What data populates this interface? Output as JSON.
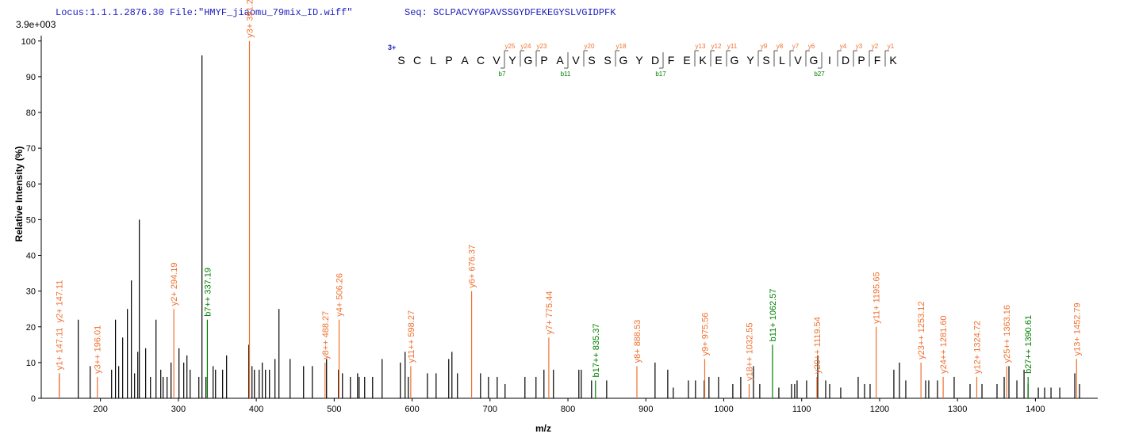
{
  "chart_data": {
    "type": "stem",
    "header": {
      "locus": "Locus:1.1.1.2876.30 File:\"HMYF_jiaomu_79mix_ID.wiff\"",
      "seq": "Seq: SCLPACVYGPAVSSGYDFEKEGYSLVGIDPFK"
    },
    "scale_label": "3.9e+003",
    "y_label": "Relative   Intensity (%)",
    "x_label": "m/z",
    "xlim": [
      124,
      1480
    ],
    "ylim": [
      0,
      101.5
    ],
    "xticks": [
      200,
      300,
      400,
      500,
      600,
      700,
      800,
      900,
      1000,
      1100,
      1200,
      1300,
      1400
    ],
    "yticks": [
      0,
      10,
      20,
      30,
      40,
      50,
      60,
      70,
      80,
      90,
      100
    ],
    "grid": false,
    "series": [
      {
        "color": "#000000",
        "x": [
          171.5,
          186.8,
          214.3,
          219.3,
          223.4,
          228.5,
          234.6,
          239.7,
          243.8,
          247.9,
          249.9,
          258,
          264.2,
          271.3,
          277.4,
          280.4,
          285.5,
          290.6,
          300.8,
          306.9,
          311,
          315.1,
          326.3,
          330.3,
          335.4,
          344.6,
          347.7,
          356.8,
          361.9,
          390.4,
          394.5,
          397.6,
          403.7,
          407.7,
          411.8,
          416.9,
          424,
          429.1,
          443.4,
          460.7,
          471.9,
          490.2,
          505.5,
          510.6,
          520.8,
          530,
          532,
          539.1,
          549.3,
          561.5,
          584.9,
          591,
          595.1,
          619.6,
          630.8,
          647,
          651.1,
          658.2,
          687.8,
          698,
          709.2,
          719.3,
          744.8,
          759,
          769.2,
          781.4,
          814,
          817.1,
          830.3,
          849.7,
          911.8,
          928.1,
          935.2,
          954.6,
          963.7,
          974.9,
          981,
          993.3,
          1011.6,
          1021.8,
          1038.1,
          1046.2,
          1070.7,
          1087,
          1091,
          1094.1,
          1106.3,
          1120.6,
          1130.8,
          1135.9,
          1150.1,
          1172.5,
          1180.7,
          1187.8,
          1218.3,
          1225.5,
          1233.6,
          1259.1,
          1263.1,
          1274.3,
          1295.7,
          1316.1,
          1331.4,
          1350.7,
          1359.9,
          1366,
          1376.2,
          1385.4,
          1390.5,
          1403.7,
          1411.8,
          1420,
          1431.2,
          1450.5,
          1456.6
        ],
        "values": [
          22,
          9,
          8,
          22,
          9,
          17,
          25,
          33,
          7,
          13,
          50,
          14,
          6,
          22,
          8,
          6,
          6,
          10,
          14,
          10,
          12,
          8,
          6,
          96,
          6,
          9,
          8,
          8,
          12,
          15,
          9,
          8,
          8,
          10,
          8,
          8,
          11,
          25,
          11,
          9,
          9,
          11,
          8,
          7,
          6,
          7,
          6,
          6,
          6,
          11,
          10,
          13,
          6,
          7,
          7,
          11,
          13,
          7,
          7,
          6,
          6,
          4,
          6,
          6,
          8,
          8,
          8,
          8,
          5,
          5,
          10,
          8,
          3,
          5,
          5,
          5,
          6,
          6,
          4,
          6,
          9,
          4,
          3,
          4,
          4,
          5,
          5,
          12,
          5,
          4,
          3,
          6,
          4,
          4,
          8,
          10,
          5,
          5,
          5,
          5,
          6,
          4,
          4,
          4,
          6,
          9,
          5,
          8,
          4,
          3,
          3,
          3,
          3,
          7,
          4
        ]
      },
      {
        "color": "#f07030",
        "x": [
          147.11,
          147.11,
          196.01,
          294.19,
          391.24,
          488.27,
          506.26,
          598.27,
          676.37,
          775.44,
          888.53,
          975.56,
          1032.55,
          1119.54,
          1195.65,
          1253.12,
          1281.6,
          1324.72,
          1363.16,
          1452.79
        ],
        "values": [
          7,
          7,
          6,
          25,
          100,
          10,
          22,
          9,
          30,
          17,
          9,
          11,
          4,
          6,
          20,
          10,
          6,
          6,
          9,
          11
        ],
        "labels": [
          "y1+ 147.11",
          "y2+ 147.11",
          "y3++ 196.01",
          "y2+ 294.19",
          "y3+ 391.24",
          "y8++ 488.27",
          "y4+ 506.26",
          "y11++ 598.27",
          "y6+ 676.37",
          "y7+ 775.44",
          "y8+ 888.53",
          "y9+ 975.56",
          "y18++ 1032.55",
          "y20++ 1119.54",
          "y11+ 1195.65",
          "y23++ 1253.12",
          "y24++ 1281.60",
          "y12+ 1324.72",
          "y25++ 1363.16",
          "y13+ 1452.79"
        ]
      },
      {
        "color": "#008000",
        "x": [
          337.19,
          835.37,
          1062.57,
          1390.61
        ],
        "values": [
          22,
          5,
          15,
          6
        ],
        "labels": [
          "b7++ 337.19",
          "b17++ 835.37",
          "b11+ 1062.57",
          "b27++ 1390.61"
        ]
      }
    ],
    "sequence": {
      "charge": "3+",
      "residues": [
        "S",
        "C",
        "L",
        "P",
        "A",
        "C",
        "V",
        "Y",
        "G",
        "P",
        "A",
        "V",
        "S",
        "S",
        "G",
        "Y",
        "D",
        "F",
        "E",
        "K",
        "E",
        "G",
        "Y",
        "S",
        "L",
        "V",
        "G",
        "I",
        "D",
        "P",
        "F",
        "K"
      ],
      "y_ions": [
        "y25",
        "y24",
        "y23",
        "y20",
        "y18",
        "y13",
        "y12",
        "y11",
        "y9",
        "y8",
        "y7",
        "y6",
        "y4",
        "y3",
        "y2",
        "y1"
      ],
      "b_ions": [
        "b7",
        "b11",
        "b17",
        "b27"
      ],
      "y_color": "#f07030",
      "b_color": "#008000"
    }
  }
}
